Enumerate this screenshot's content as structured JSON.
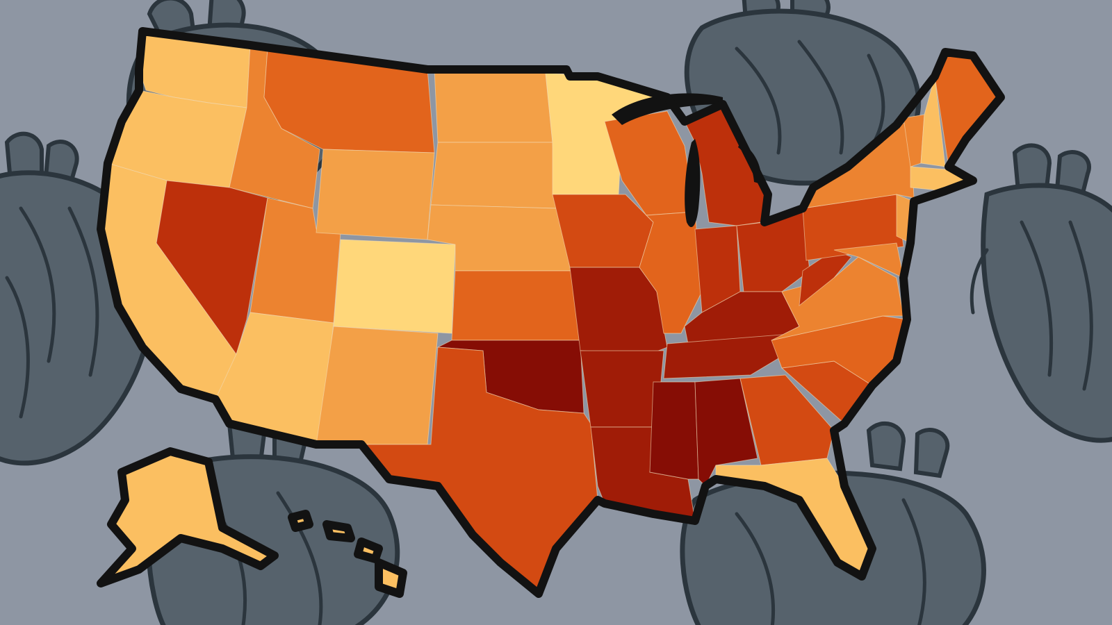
{
  "colors": {
    "background": "#8e96a3",
    "heart_fill": "#56626c",
    "heart_stroke": "#2b353d",
    "outline": "#121212"
  },
  "legend_scale": [
    "#ffd77a",
    "#fbbf61",
    "#f3a047",
    "#ec8330",
    "#e2641c",
    "#d34a12",
    "#bd300b",
    "#a01c07",
    "#860d05"
  ],
  "map": {
    "states": [
      {
        "code": "WA",
        "tier": 1
      },
      {
        "code": "OR",
        "tier": 1
      },
      {
        "code": "CA",
        "tier": 1
      },
      {
        "code": "ID",
        "tier": 3
      },
      {
        "code": "NV",
        "tier": 6
      },
      {
        "code": "UT",
        "tier": 3
      },
      {
        "code": "AZ",
        "tier": 1
      },
      {
        "code": "MT",
        "tier": 4
      },
      {
        "code": "WY",
        "tier": 2
      },
      {
        "code": "CO",
        "tier": 0
      },
      {
        "code": "NM",
        "tier": 2
      },
      {
        "code": "ND",
        "tier": 2
      },
      {
        "code": "SD",
        "tier": 2
      },
      {
        "code": "NE",
        "tier": 2
      },
      {
        "code": "KS",
        "tier": 4
      },
      {
        "code": "OK",
        "tier": 8
      },
      {
        "code": "TX",
        "tier": 5
      },
      {
        "code": "MN",
        "tier": 0
      },
      {
        "code": "IA",
        "tier": 5
      },
      {
        "code": "MO",
        "tier": 7
      },
      {
        "code": "AR",
        "tier": 7
      },
      {
        "code": "LA",
        "tier": 7
      },
      {
        "code": "WI",
        "tier": 4
      },
      {
        "code": "IL",
        "tier": 4
      },
      {
        "code": "MI",
        "tier": 6
      },
      {
        "code": "IN",
        "tier": 6
      },
      {
        "code": "OH",
        "tier": 6
      },
      {
        "code": "KY",
        "tier": 7
      },
      {
        "code": "TN",
        "tier": 7
      },
      {
        "code": "MS",
        "tier": 8
      },
      {
        "code": "AL",
        "tier": 8
      },
      {
        "code": "GA",
        "tier": 5
      },
      {
        "code": "FL",
        "tier": 1
      },
      {
        "code": "SC",
        "tier": 5
      },
      {
        "code": "NC",
        "tier": 4
      },
      {
        "code": "VA",
        "tier": 3
      },
      {
        "code": "WV",
        "tier": 6
      },
      {
        "code": "PA",
        "tier": 5
      },
      {
        "code": "NY",
        "tier": 3
      },
      {
        "code": "VT",
        "tier": 3
      },
      {
        "code": "NH",
        "tier": 1
      },
      {
        "code": "ME",
        "tier": 4
      },
      {
        "code": "MA",
        "tier": 1
      },
      {
        "code": "NJ",
        "tier": 2
      },
      {
        "code": "MD",
        "tier": 3
      },
      {
        "code": "AK",
        "tier": 1
      },
      {
        "code": "HI",
        "tier": 1
      }
    ]
  }
}
